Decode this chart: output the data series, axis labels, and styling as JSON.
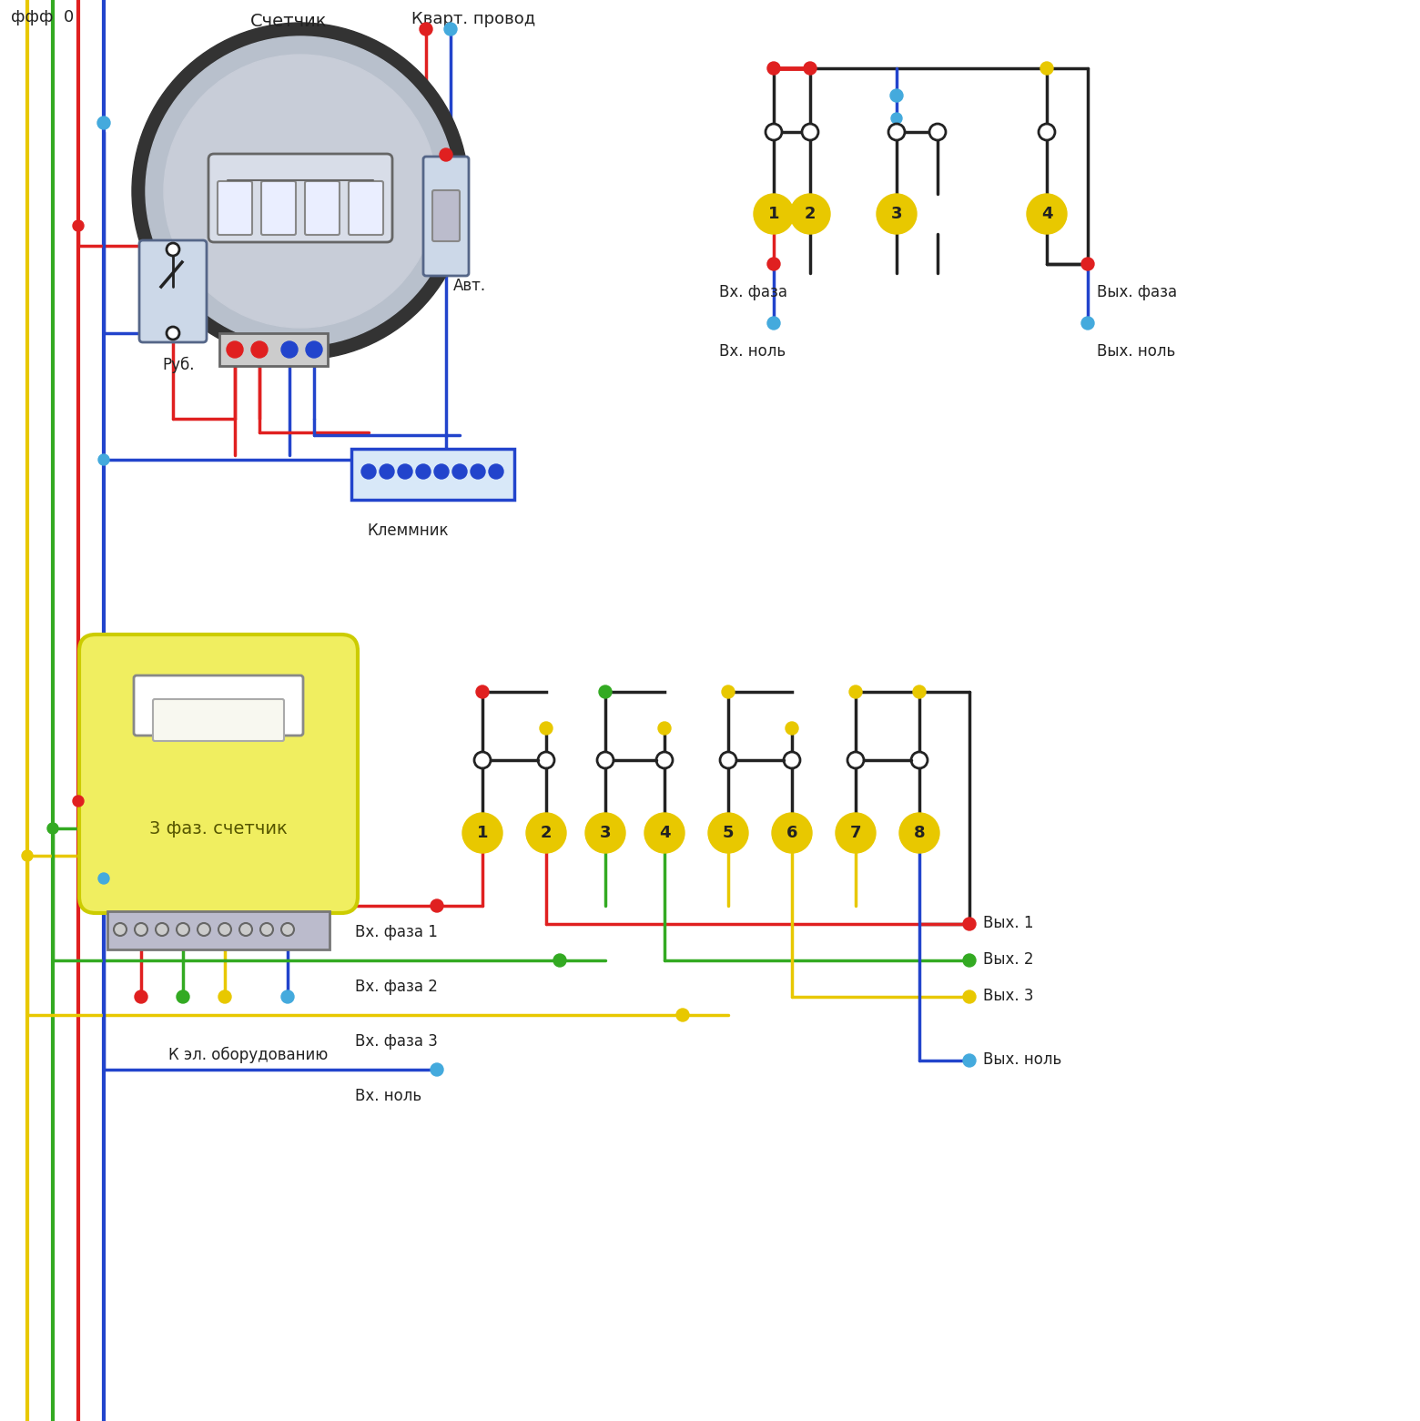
{
  "bg": "#ffffff",
  "red": "#e02020",
  "blue": "#2244cc",
  "yellow": "#e8c800",
  "green": "#33aa22",
  "light_blue": "#44aadd",
  "dark": "#222222",
  "gray": "#aaaaaa",
  "meter_gray": "#b8c0cc",
  "meter_dark": "#333344",
  "yellow_body": "#f0ee60",
  "labels": {
    "fff0": "ффф  0",
    "schetnik": "Счетчик",
    "kvart": "Кварт. провод",
    "rub": "Руб.",
    "avt": "Авт.",
    "klem": "Клеммник",
    "vx_faza": "Вх. фаза",
    "vyh_faza": "Вых. фаза",
    "vx_nol": "Вх. ноль",
    "vyh_nol": "Вых. ноль",
    "3faz": "3 фаз. счетчик",
    "k_el": "К эл. оборудованию",
    "vx_faza1": "Вх. фаза 1",
    "vx_faza2": "Вх. фаза 2",
    "vx_faza3": "Вх. фаза 3",
    "vx_nol2": "Вх. ноль",
    "vyh1": "Вых. 1",
    "vyh2": "Вых. 2",
    "vyh3": "Вых. 3",
    "vyh_nol2": "Вых. ноль"
  }
}
